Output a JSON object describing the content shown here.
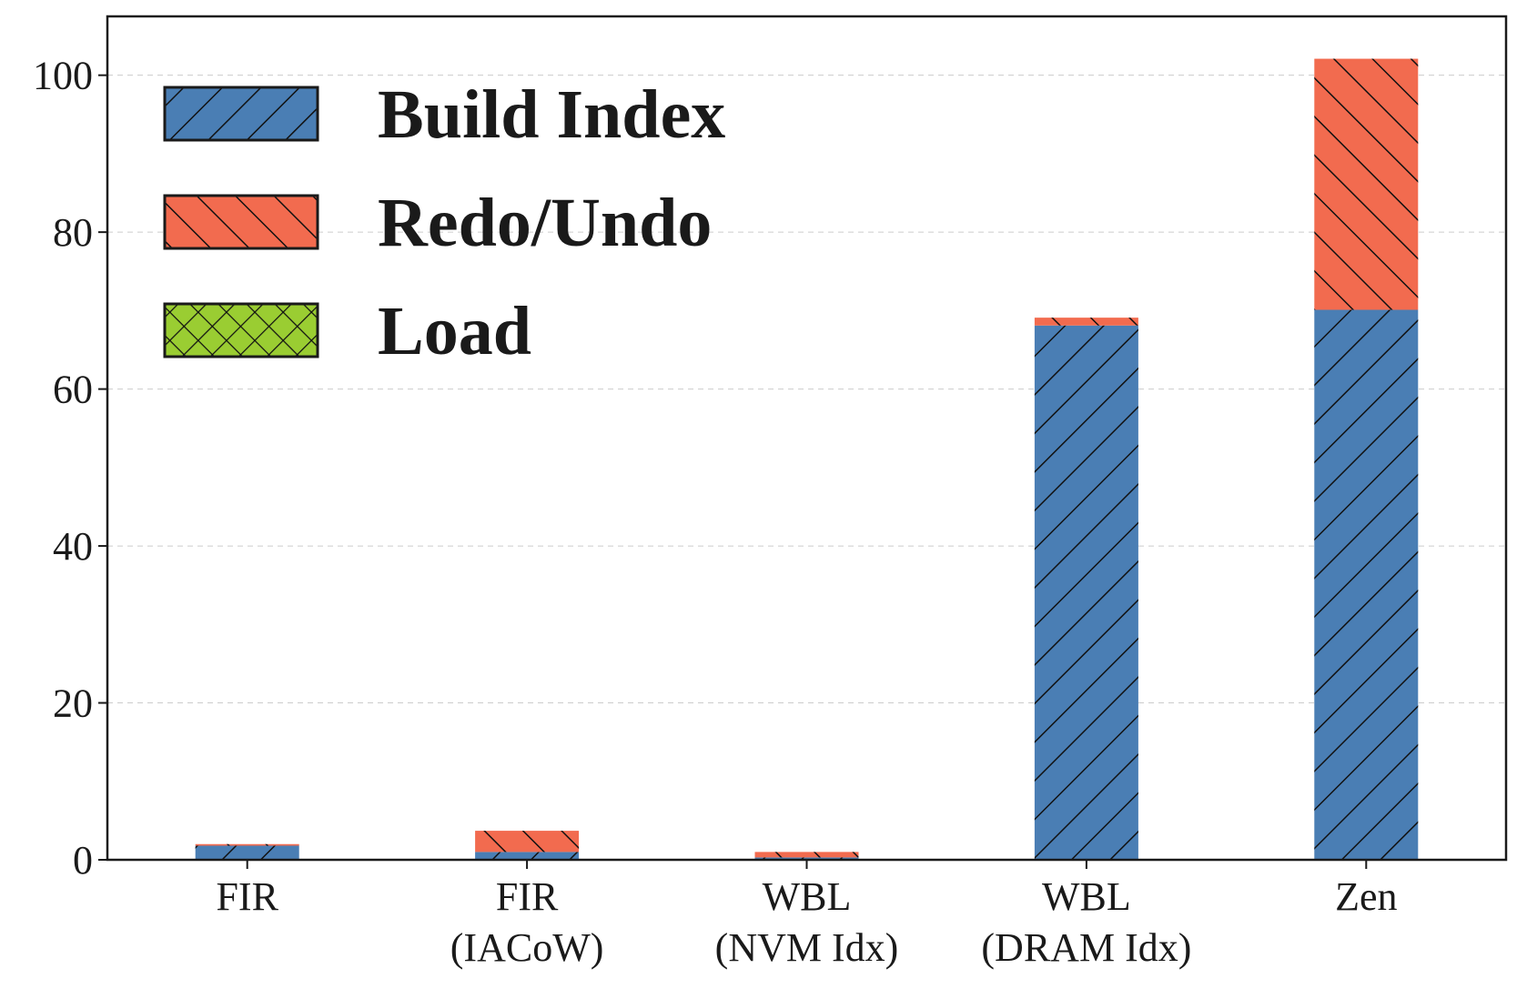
{
  "chart_data": {
    "type": "bar",
    "stacked": true,
    "categories": [
      [
        "FIR"
      ],
      [
        "FIR",
        "(IACoW)"
      ],
      [
        "WBL",
        "(NVM Idx)"
      ],
      [
        "WBL",
        "(DRAM Idx)"
      ],
      [
        "Zen"
      ]
    ],
    "series": [
      {
        "name": "Load",
        "values": [
          0.1,
          0.1,
          0.1,
          0.1,
          0.1
        ],
        "color": "#9acd32",
        "hatch": "cross"
      },
      {
        "name": "Build Index",
        "values": [
          1.7,
          0.9,
          0.2,
          68,
          70
        ],
        "color": "#4a7eb4",
        "hatch": "forward"
      },
      {
        "name": "Redo/Undo",
        "values": [
          0.2,
          2.7,
          0.7,
          1.0,
          32
        ],
        "color": "#f26b4f",
        "hatch": "backward"
      }
    ],
    "legend_order": [
      "Build Index",
      "Redo/Undo",
      "Load"
    ],
    "legend_position": "top-left",
    "yticks": [
      0,
      20,
      40,
      60,
      80,
      100
    ],
    "ylim": [
      0,
      107.5
    ],
    "grid": "horizontal-dashed",
    "title": "",
    "xlabel": "",
    "ylabel": ""
  }
}
